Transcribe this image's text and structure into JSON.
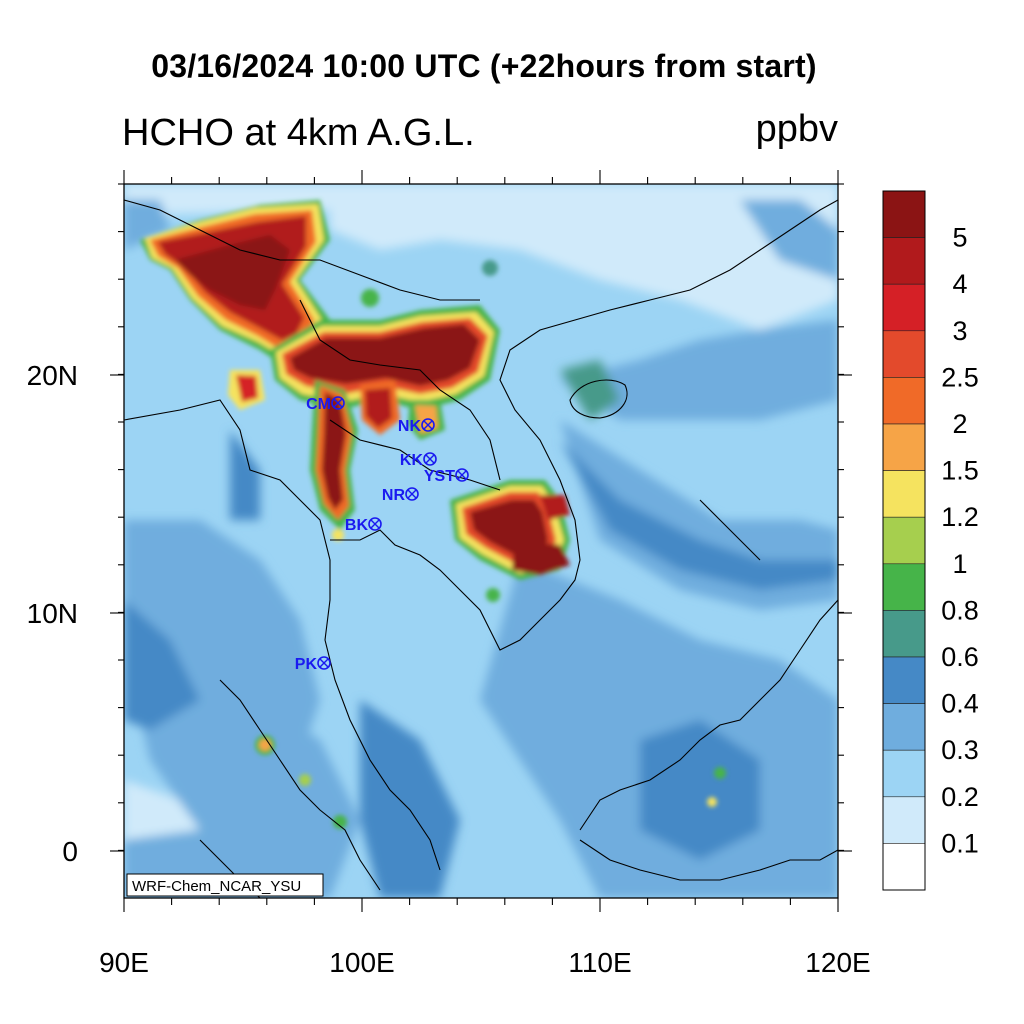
{
  "title": "03/16/2024 10:00 UTC (+22hours from start)",
  "subtitle": "HCHO at 4km A.G.L.",
  "units": "ppbv",
  "model_label": "WRF-Chem_NCAR_YSU",
  "x_ticks": [
    "90E",
    "100E",
    "110E",
    "120E"
  ],
  "y_ticks": [
    "20N",
    "10N",
    "0"
  ],
  "stations": [
    {
      "code": "CM"
    },
    {
      "code": "NK"
    },
    {
      "code": "KK"
    },
    {
      "code": "YST"
    },
    {
      "code": "NR"
    },
    {
      "code": "BK"
    },
    {
      "code": "PK"
    }
  ],
  "colorbar": {
    "labels": [
      "5",
      "4",
      "3",
      "2.5",
      "2",
      "1.5",
      "1.2",
      "1",
      "0.8",
      "0.6",
      "0.4",
      "0.3",
      "0.2",
      "0.1"
    ],
    "colors": [
      "#8b1414",
      "#b11a1c",
      "#d52026",
      "#e34a2c",
      "#f06a28",
      "#f6a447",
      "#f5e35f",
      "#a6cf4e",
      "#46b449",
      "#479a8a",
      "#4589c6",
      "#6fadde",
      "#9cd4f4",
      "#d0eafa",
      "#ffffff"
    ]
  },
  "colors": {
    "ocean_low": "#6fadde",
    "ocean_mid": "#9cd4f4",
    "ocean_deep": "#4589c6",
    "land_low": "#d0eafa",
    "hot": "#8b1414",
    "station": "#1a1af0"
  }
}
